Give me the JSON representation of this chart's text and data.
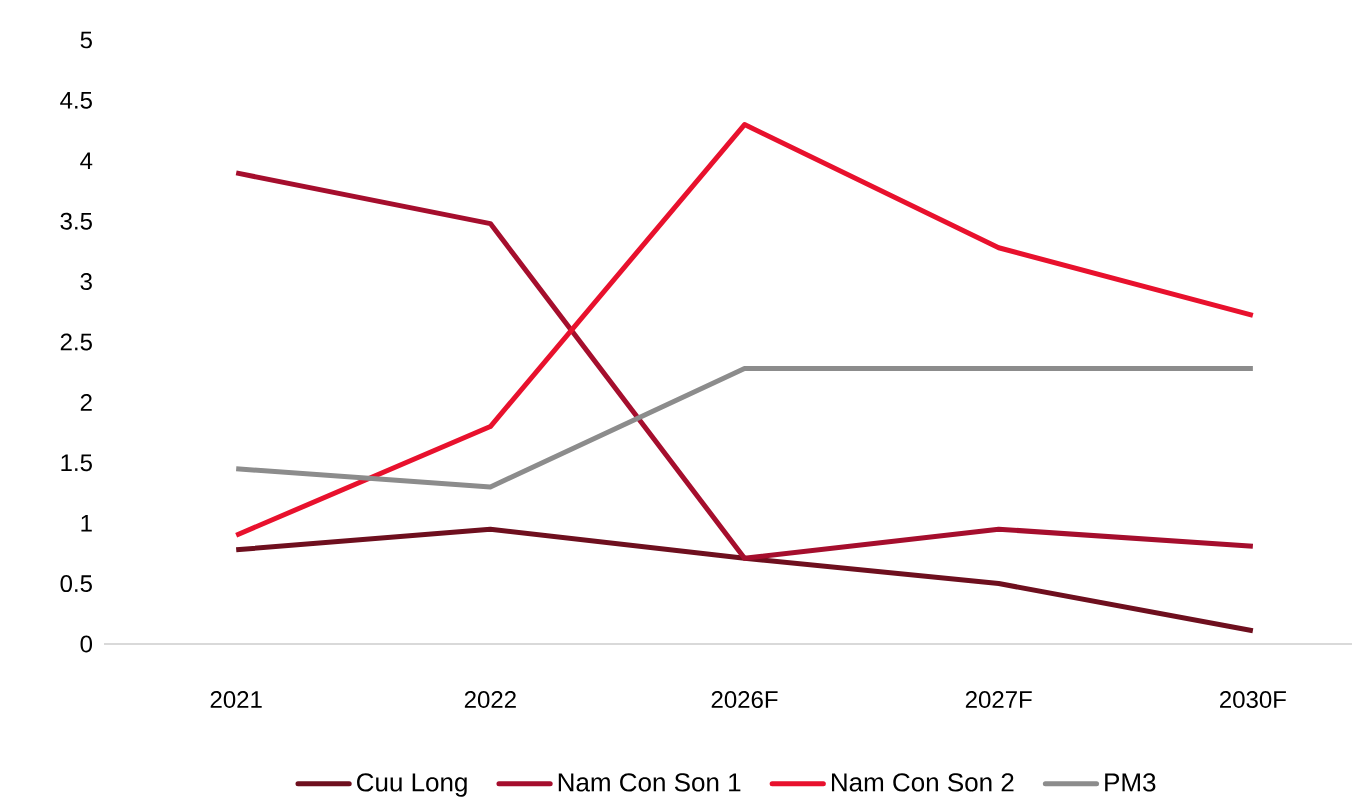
{
  "chart_data": {
    "type": "line",
    "categories": [
      "2021",
      "2022",
      "2026F",
      "2027F",
      "2030F"
    ],
    "series": [
      {
        "name": "Cuu Long",
        "color": "#6e0f1e",
        "values": [
          0.78,
          0.95,
          0.71,
          0.5,
          0.11
        ]
      },
      {
        "name": "Nam Con Son 1",
        "color": "#a50e2d",
        "values": [
          3.9,
          3.48,
          0.71,
          0.95,
          0.81
        ]
      },
      {
        "name": "Nam Con Son 2",
        "color": "#e8112d",
        "values": [
          0.9,
          1.8,
          4.3,
          3.28,
          2.72
        ]
      },
      {
        "name": "PM3",
        "color": "#8c8c8c",
        "values": [
          1.45,
          1.3,
          2.28,
          2.28,
          2.28
        ]
      }
    ],
    "ylim": [
      0,
      5
    ],
    "yticks": [
      0,
      0.5,
      1,
      1.5,
      2,
      2.5,
      3,
      3.5,
      4,
      4.5,
      5
    ],
    "grid": false,
    "legend": "bottom",
    "marker": "none",
    "line_style": "solid"
  }
}
